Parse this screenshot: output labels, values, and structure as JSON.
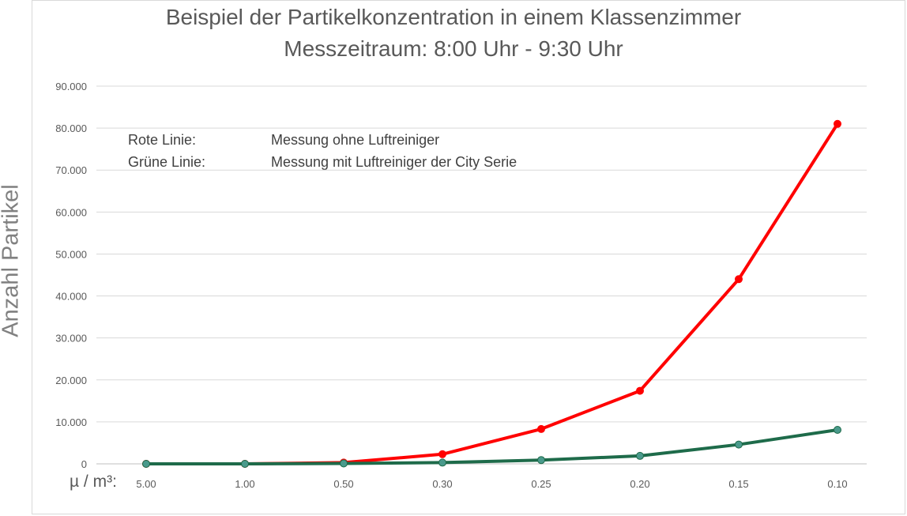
{
  "chart_data": {
    "type": "line",
    "title": "Beispiel der Partikelkonzentration in einem Klassenzimmer",
    "subtitle": "Messzeitraum: 8:00 Uhr - 9:30 Uhr",
    "ylabel": "Anzahl Partikel",
    "xlabel_prefix": "µ / m³:",
    "categories": [
      "5.00",
      "1.00",
      "0.50",
      "0.30",
      "0.25",
      "0.20",
      "0.15",
      "0.10"
    ],
    "ylim": [
      0,
      90000
    ],
    "y_ticks": [
      0,
      10000,
      20000,
      30000,
      40000,
      50000,
      60000,
      70000,
      80000,
      90000
    ],
    "y_tick_labels": [
      "0",
      "10.000",
      "20.000",
      "30.000",
      "40.000",
      "50.000",
      "60.000",
      "70.000",
      "80.000",
      "90.000"
    ],
    "grid": true,
    "series": [
      {
        "color": "#ff0000",
        "values": [
          0,
          0,
          300,
          2300,
          8300,
          17400,
          44000,
          81000
        ]
      },
      {
        "color": "#1e6b4a",
        "marker_color": "#4a9a8c",
        "values": [
          0,
          0,
          100,
          300,
          900,
          1900,
          4600,
          8100
        ]
      }
    ],
    "annotations": [
      {
        "label": "Rote Linie:",
        "text": "Messung ohne Luftreiniger"
      },
      {
        "label": "Grüne Linie:",
        "text": "Messung mit Luftreiniger der City Serie"
      }
    ]
  }
}
